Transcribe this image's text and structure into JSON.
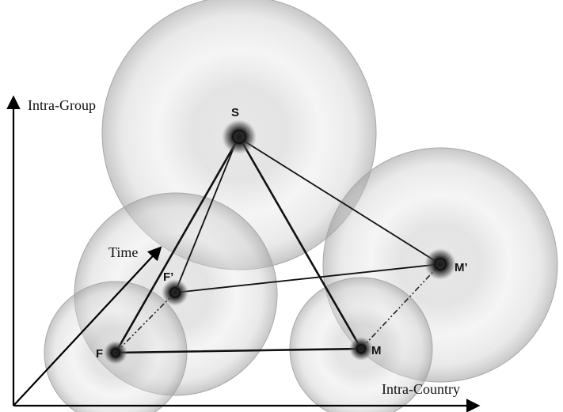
{
  "axes": {
    "y_label": "Intra-Group",
    "x_label": "Intra-Country",
    "z_label": "Time"
  },
  "nodes": {
    "S": "S",
    "F": "F",
    "F_prime": "F’",
    "M": "M",
    "M_prime": "M’"
  },
  "colors": {
    "line": "#111111",
    "bubble": "#b8b8b8",
    "node_core": "#1a1a1a"
  }
}
